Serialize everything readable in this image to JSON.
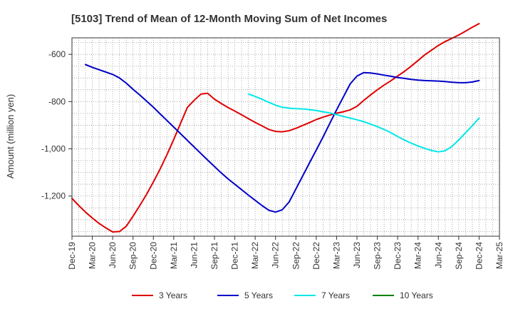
{
  "chart_data": {
    "type": "line",
    "title": "[5103]  Trend of Mean of 12-Month Moving Sum of Net Incomes",
    "ylabel": "Amount (million yen)",
    "xlabel": "",
    "x_ticks": [
      "Dec-19",
      "Mar-20",
      "Jun-20",
      "Sep-20",
      "Dec-20",
      "Mar-21",
      "Jun-21",
      "Sep-21",
      "Dec-21",
      "Mar-22",
      "Jun-22",
      "Sep-22",
      "Dec-22",
      "Mar-23",
      "Jun-23",
      "Sep-23",
      "Dec-23",
      "Mar-24",
      "Jun-24",
      "Sep-24",
      "Dec-24",
      "Mar-25"
    ],
    "y_ticks": [
      -1200,
      -1000,
      -800,
      -600
    ],
    "y_tick_labels": [
      "-1,200",
      "-1,000",
      "-800",
      "-600"
    ],
    "ylim": [
      -1370,
      -530
    ],
    "grid": true,
    "legend_position": "bottom",
    "series": [
      {
        "name": "3 Years",
        "color": "#e00000",
        "x": [
          0,
          1,
          2,
          3,
          4,
          5,
          6,
          7,
          8,
          9,
          10,
          11,
          12,
          13,
          14,
          15,
          16,
          17,
          18,
          19,
          20,
          21,
          22,
          23,
          24,
          25,
          26,
          27,
          28,
          29,
          30,
          31,
          32,
          33,
          34,
          35,
          36,
          37,
          38,
          39,
          40,
          41,
          42,
          43,
          44,
          45,
          46,
          47,
          48,
          49,
          50,
          51,
          52,
          53,
          54,
          55,
          56,
          57,
          58,
          59,
          60
        ],
        "values": [
          -1210,
          -1240,
          -1268,
          -1293,
          -1316,
          -1335,
          -1352,
          -1350,
          -1328,
          -1285,
          -1240,
          -1192,
          -1140,
          -1085,
          -1025,
          -960,
          -892,
          -825,
          -795,
          -768,
          -765,
          -790,
          -808,
          -825,
          -840,
          -856,
          -872,
          -888,
          -903,
          -918,
          -926,
          -928,
          -923,
          -913,
          -901,
          -889,
          -876,
          -866,
          -857,
          -849,
          -843,
          -835,
          -820,
          -795,
          -772,
          -750,
          -730,
          -712,
          -692,
          -672,
          -650,
          -626,
          -602,
          -582,
          -562,
          -546,
          -532,
          -518,
          -502,
          -485,
          -470
        ]
      },
      {
        "name": "5 Years",
        "color": "#0000c8",
        "x": [
          2,
          3,
          4,
          5,
          6,
          7,
          8,
          9,
          10,
          11,
          12,
          13,
          14,
          15,
          16,
          17,
          18,
          19,
          20,
          21,
          22,
          23,
          24,
          25,
          26,
          27,
          28,
          29,
          30,
          31,
          32,
          33,
          34,
          35,
          36,
          37,
          38,
          39,
          40,
          41,
          42,
          43,
          44,
          45,
          46,
          47,
          48,
          49,
          50,
          51,
          52,
          53,
          54,
          55,
          56,
          57,
          58,
          59,
          60
        ],
        "values": [
          -643,
          -655,
          -665,
          -675,
          -685,
          -700,
          -722,
          -748,
          -772,
          -798,
          -824,
          -852,
          -880,
          -908,
          -936,
          -964,
          -992,
          -1020,
          -1048,
          -1075,
          -1102,
          -1127,
          -1150,
          -1173,
          -1196,
          -1218,
          -1240,
          -1260,
          -1268,
          -1258,
          -1225,
          -1170,
          -1115,
          -1060,
          -1005,
          -950,
          -892,
          -835,
          -780,
          -725,
          -692,
          -677,
          -679,
          -683,
          -688,
          -693,
          -698,
          -702,
          -706,
          -709,
          -711,
          -712,
          -713,
          -715,
          -718,
          -720,
          -720,
          -717,
          -711
        ]
      },
      {
        "name": "7 Years",
        "color": "#00e8e8",
        "x": [
          26,
          27,
          28,
          29,
          30,
          31,
          32,
          33,
          34,
          35,
          36,
          37,
          38,
          39,
          40,
          41,
          42,
          43,
          44,
          45,
          46,
          47,
          48,
          49,
          50,
          51,
          52,
          53,
          54,
          55,
          56,
          57,
          58,
          59,
          60
        ],
        "values": [
          -768,
          -778,
          -790,
          -803,
          -815,
          -824,
          -828,
          -830,
          -831,
          -834,
          -838,
          -843,
          -848,
          -855,
          -863,
          -870,
          -877,
          -885,
          -895,
          -906,
          -918,
          -932,
          -948,
          -963,
          -976,
          -988,
          -998,
          -1007,
          -1013,
          -1008,
          -990,
          -962,
          -932,
          -902,
          -870
        ]
      },
      {
        "name": "10 Years",
        "color": "#008000",
        "x": [],
        "values": []
      }
    ]
  }
}
